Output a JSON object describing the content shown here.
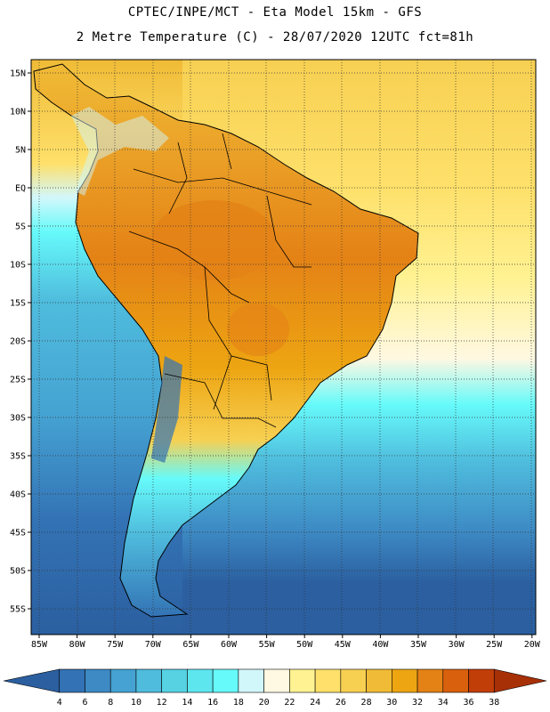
{
  "title_line1": "CPTEC/INPE/MCT -  Eta Model 15km - GFS",
  "title_line2": "2 Metre Temperature (C) - 28/07/2020 12UTC fct=81h",
  "lat_labels": [
    "15N",
    "10N",
    "5N",
    "EQ",
    "5S",
    "10S",
    "15S",
    "20S",
    "25S",
    "30S",
    "35S",
    "40S",
    "45S",
    "50S",
    "55S"
  ],
  "lon_labels": [
    "85W",
    "80W",
    "75W",
    "70W",
    "65W",
    "60W",
    "55W",
    "50W",
    "45W",
    "40W",
    "35W",
    "30W",
    "25W",
    "20W"
  ],
  "colorbar": {
    "labels": [
      "4",
      "6",
      "8",
      "10",
      "12",
      "14",
      "16",
      "18",
      "20",
      "22",
      "24",
      "26",
      "28",
      "30",
      "32",
      "34",
      "36",
      "38"
    ],
    "colors": [
      "#2b5fa0",
      "#3373b5",
      "#3d8ac4",
      "#45a2d2",
      "#4fbcdd",
      "#56d2e3",
      "#5ee6ef",
      "#66fafa",
      "#d2f7fb",
      "#fff8e2",
      "#fff292",
      "#fee06a",
      "#f7d052",
      "#f0bb36",
      "#eda512",
      "#e48216",
      "#d9600d",
      "#c23e08",
      "#a83006"
    ]
  }
}
